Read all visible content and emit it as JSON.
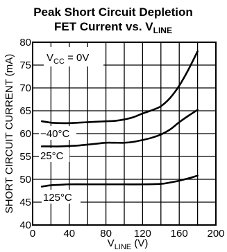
{
  "chart_data": {
    "type": "line",
    "title_line1": "Peak Short Circuit Depletion",
    "title_line2_main": "FET Current vs. V",
    "title_line2_sub": "LINE",
    "xlabel_main": "V",
    "xlabel_sub": "LINE",
    "xlabel_unit": " (V)",
    "ylabel": "SHORT CIRCUIT CURRENT (mA)",
    "xlim": [
      0,
      200
    ],
    "ylim": [
      40,
      80
    ],
    "x_ticks": [
      0,
      40,
      80,
      120,
      160,
      200
    ],
    "x_tick_labels": [
      "0",
      "40",
      "80",
      "120",
      "160",
      "200"
    ],
    "x_grid": [
      0,
      20,
      40,
      60,
      80,
      100,
      120,
      140,
      160,
      180,
      200
    ],
    "y_ticks": [
      40,
      45,
      50,
      55,
      60,
      65,
      70,
      75,
      80
    ],
    "y_tick_labels": [
      "40",
      "45",
      "50",
      "55",
      "60",
      "65",
      "70",
      "75",
      "80"
    ],
    "grid": true,
    "condition_main": "V",
    "condition_sub": "CC",
    "condition_rest": " = 0V",
    "series": [
      {
        "name": "−40°C",
        "x": [
          10,
          20,
          30,
          40,
          50,
          60,
          70,
          80,
          90,
          100,
          110,
          120,
          130,
          140,
          150,
          160,
          170,
          180
        ],
        "values": [
          62.7,
          62.4,
          62.3,
          62.3,
          62.4,
          62.5,
          62.6,
          62.7,
          62.8,
          63.1,
          63.6,
          64.4,
          65.1,
          66.0,
          67.8,
          70.5,
          74.0,
          78.0
        ]
      },
      {
        "name": "25°C",
        "x": [
          10,
          20,
          30,
          40,
          50,
          60,
          70,
          80,
          90,
          100,
          110,
          120,
          130,
          140,
          150,
          160,
          170,
          180
        ],
        "values": [
          57.2,
          57.2,
          57.2,
          57.3,
          57.4,
          57.6,
          57.8,
          58.0,
          58.0,
          58.0,
          58.2,
          58.6,
          59.1,
          59.8,
          60.9,
          62.5,
          63.9,
          65.2
        ]
      },
      {
        "name": "125°C",
        "x": [
          10,
          20,
          30,
          40,
          60,
          80,
          100,
          120,
          140,
          150,
          160,
          170,
          180
        ],
        "values": [
          48.4,
          48.7,
          48.8,
          48.9,
          48.9,
          48.9,
          48.9,
          48.9,
          49.0,
          49.3,
          49.7,
          50.2,
          50.8
        ]
      }
    ]
  }
}
